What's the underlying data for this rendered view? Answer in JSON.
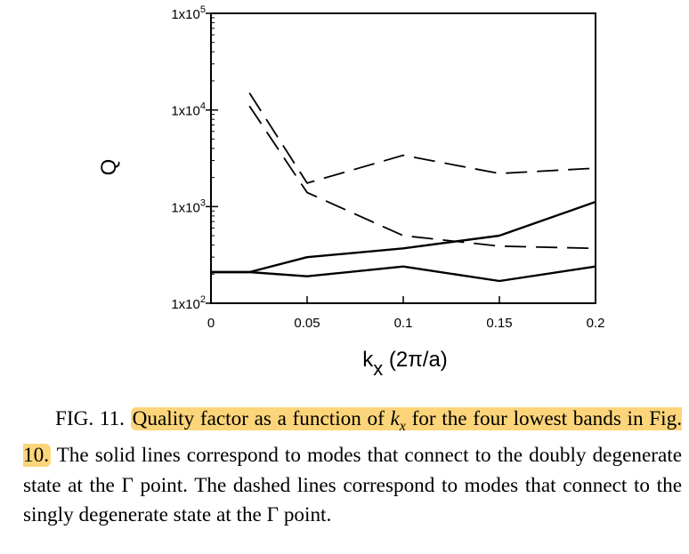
{
  "caption": {
    "label": "FIG. 11.",
    "highlight_part1": "Quality factor as a function of ",
    "highlight_var": "k",
    "highlight_var_sub": "x",
    "highlight_part2": " for the four lowest bands in Fig. 10.",
    "rest": " The solid lines correspond to modes that connect to the doubly degenerate state at the Γ point. The dashed lines correspond to modes that connect to the singly degenerate state at the Γ point."
  },
  "chart_data": {
    "type": "line",
    "ylabel": "Q",
    "xlabel": {
      "main": "k",
      "sub": "x",
      "unit": " (2π/a)"
    },
    "xlim": [
      0,
      0.2
    ],
    "ylim": [
      100,
      100000
    ],
    "y_scale": "log",
    "x_ticks": [
      {
        "value": 0,
        "label": "0"
      },
      {
        "value": 0.05,
        "label": "0.05"
      },
      {
        "value": 0.1,
        "label": "0.1"
      },
      {
        "value": 0.15,
        "label": "0.15"
      },
      {
        "value": 0.2,
        "label": "0.2"
      }
    ],
    "y_ticks": [
      {
        "value": 100,
        "label": "1x10",
        "exp": "2"
      },
      {
        "value": 1000,
        "label": "1x10",
        "exp": "3"
      },
      {
        "value": 10000,
        "label": "1x10",
        "exp": "4"
      },
      {
        "value": 100000,
        "label": "1x10",
        "exp": "5"
      }
    ],
    "series": [
      {
        "style": "solid",
        "x": [
          0,
          0.02,
          0.05,
          0.1,
          0.15,
          0.2
        ],
        "y": [
          210,
          210,
          300,
          370,
          500,
          1120
        ]
      },
      {
        "style": "solid",
        "x": [
          0,
          0.02,
          0.05,
          0.1,
          0.15,
          0.2
        ],
        "y": [
          210,
          210,
          190,
          240,
          170,
          240
        ]
      },
      {
        "style": "dashed",
        "x": [
          0.02,
          0.05,
          0.1,
          0.15,
          0.2
        ],
        "y": [
          15000,
          1750,
          3400,
          2200,
          2500
        ]
      },
      {
        "style": "dashed",
        "x": [
          0.02,
          0.05,
          0.1,
          0.15,
          0.2
        ],
        "y": [
          11000,
          1400,
          500,
          390,
          370
        ]
      }
    ],
    "grid": false,
    "legend": "none"
  }
}
